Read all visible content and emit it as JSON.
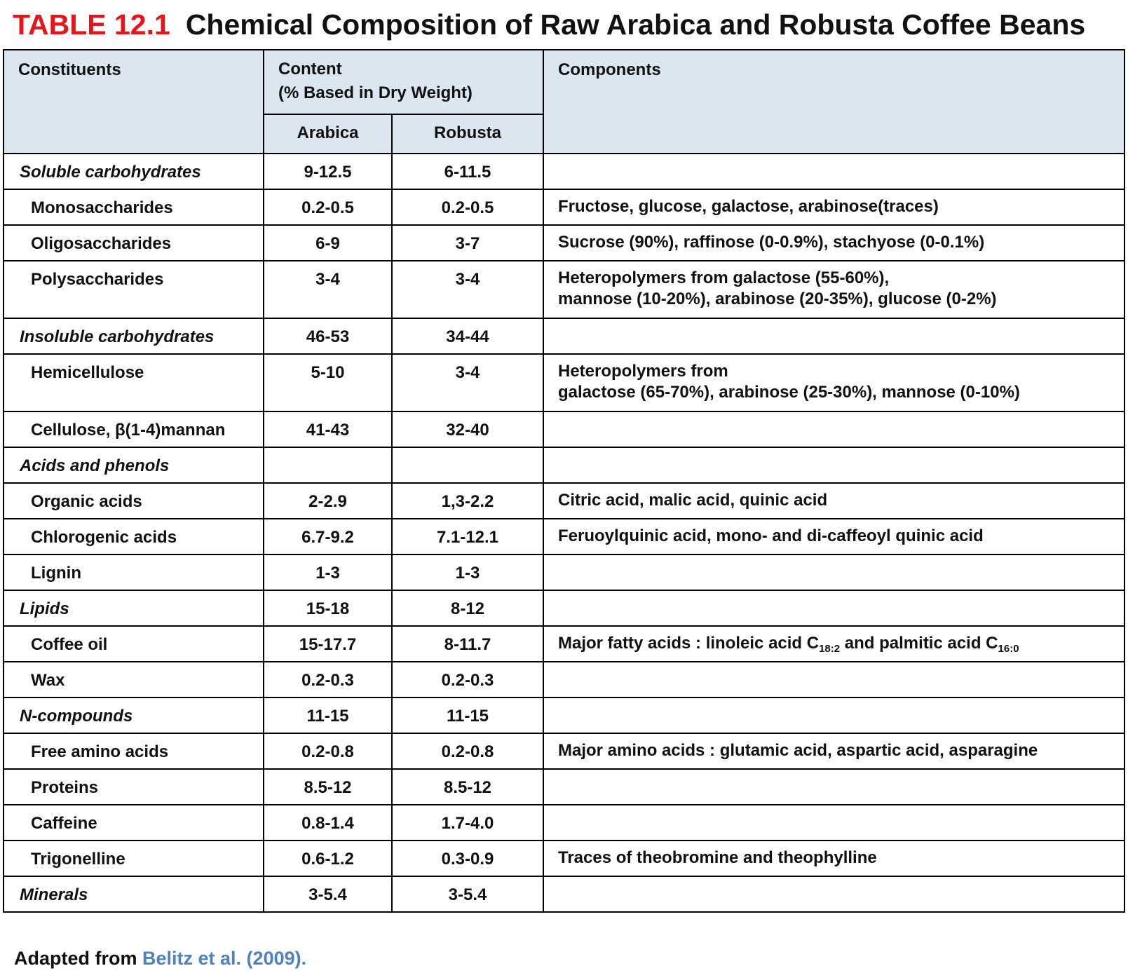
{
  "header": {
    "label": "TABLE 12.1",
    "title": "Chemical Composition of Raw Arabica and Robusta Coffee Beans"
  },
  "table": {
    "columns": {
      "constituents": "Constituents",
      "content": "Content\n(% Based in Dry Weight)",
      "arabica": "Arabica",
      "robusta": "Robusta",
      "components": "Components"
    },
    "groups": [
      {
        "name": "Soluble carbohydrates",
        "arabica": "9-12.5",
        "robusta": "6-11.5",
        "items": [
          {
            "name": "Monosaccharides",
            "arabica": "0.2-0.5",
            "robusta": "0.2-0.5",
            "components": "Fructose, glucose, galactose, arabinose(traces)"
          },
          {
            "name": "Oligosaccharides",
            "arabica": "6-9",
            "robusta": "3-7",
            "components": "Sucrose (90%), raffinose (0-0.9%), stachyose (0-0.1%)"
          },
          {
            "name": "Polysaccharides",
            "arabica": "3-4",
            "robusta": "3-4",
            "components": "Heteropolymers from galactose (55-60%),\nmannose (10-20%), arabinose (20-35%), glucose (0-2%)"
          }
        ]
      },
      {
        "name": "Insoluble carbohydrates",
        "arabica": "46-53",
        "robusta": "34-44",
        "items": [
          {
            "name": "Hemicellulose",
            "arabica": "5-10",
            "robusta": "3-4",
            "components": "Heteropolymers from\ngalactose (65-70%), arabinose (25-30%), mannose (0-10%)"
          },
          {
            "name": "Cellulose, β(1-4)mannan",
            "arabica": "41-43",
            "robusta": "32-40"
          }
        ]
      },
      {
        "name": "Acids and phenols",
        "items": [
          {
            "name": "Organic acids",
            "arabica": "2-2.9",
            "robusta": "1,3-2.2",
            "components": "Citric acid, malic acid, quinic acid"
          },
          {
            "name": "Chlorogenic acids",
            "arabica": "6.7-9.2",
            "robusta": "7.1-12.1",
            "components": "Feruoylquinic acid, mono- and di-caffeoyl quinic acid"
          },
          {
            "name": "Lignin",
            "arabica": "1-3",
            "robusta": "1-3"
          }
        ]
      },
      {
        "name": "Lipids",
        "arabica": "15-18",
        "robusta": "8-12",
        "items": [
          {
            "name": "Coffee oil",
            "arabica": "15-17.7",
            "robusta": "8-11.7",
            "components": [
              "Major fatty acids : linoleic acid C",
              "18:2",
              " and palmitic acid C",
              "16:0"
            ]
          },
          {
            "name": "Wax",
            "arabica": "0.2-0.3",
            "robusta": "0.2-0.3"
          }
        ]
      },
      {
        "name": "N-compounds",
        "arabica": "11-15",
        "robusta": "11-15",
        "items": [
          {
            "name": "Free amino acids",
            "arabica": "0.2-0.8",
            "robusta": "0.2-0.8",
            "components": "Major amino acids : glutamic acid, aspartic acid, asparagine"
          },
          {
            "name": "Proteins",
            "arabica": "8.5-12",
            "robusta": "8.5-12"
          },
          {
            "name": "Caffeine",
            "arabica": "0.8-1.4",
            "robusta": "1.7-4.0"
          },
          {
            "name": "Trigonelline",
            "arabica": "0.6-1.2",
            "robusta": "0.3-0.9",
            "components": "Traces of theobromine and theophylline"
          }
        ]
      },
      {
        "name": "Minerals",
        "arabica": "3-5.4",
        "robusta": "3-5.4",
        "items": []
      }
    ]
  },
  "footer": {
    "text": "Adapted from",
    "source": "Belitz et al. (2009)."
  }
}
